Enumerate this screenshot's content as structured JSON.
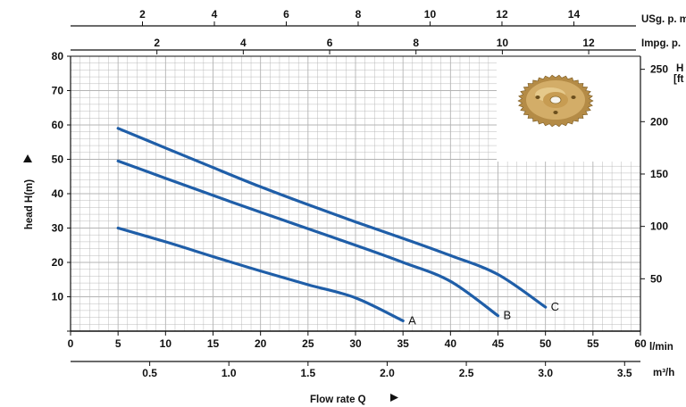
{
  "chart_data": {
    "type": "line",
    "ylabel": "head H(m)",
    "y_right_label_line1": "H",
    "y_right_label_line2": "[ft",
    "xlabel": "Flow rate Q",
    "x_lmin_unit": "l/min",
    "x_m3h_unit": "m³/h",
    "x_usg_unit": "USg. p. m",
    "x_impg_unit": "Impg. p.",
    "xlim": [
      0,
      60
    ],
    "ylim": [
      0,
      80
    ],
    "grid": true,
    "x_ticks_lmin": [
      "0",
      "5",
      "10",
      "15",
      "20",
      "25",
      "30",
      "35",
      "40",
      "45",
      "50",
      "55",
      "60"
    ],
    "x_ticks_m3h": [
      "0.5",
      "1.0",
      "1.5",
      "2.0",
      "2.5",
      "3.0",
      "3.5"
    ],
    "x_ticks_usg": [
      "2",
      "4",
      "6",
      "8",
      "10",
      "12",
      "14"
    ],
    "x_ticks_impg": [
      "2",
      "4",
      "6",
      "8",
      "10",
      "12"
    ],
    "y_ticks_m": [
      "10",
      "20",
      "30",
      "40",
      "50",
      "60",
      "70",
      "80"
    ],
    "y_ticks_ft": [
      "50",
      "100",
      "150",
      "200",
      "250"
    ],
    "series": [
      {
        "name": "A",
        "x": [
          5,
          10,
          15,
          20,
          25,
          30,
          35
        ],
        "y": [
          30,
          26,
          21.7,
          17.5,
          13.5,
          9.7,
          3
        ]
      },
      {
        "name": "B",
        "x": [
          5,
          10,
          15,
          20,
          25,
          30,
          35,
          40,
          45
        ],
        "y": [
          49.5,
          44.5,
          39.5,
          34.6,
          29.8,
          25,
          20,
          14.5,
          4.5
        ]
      },
      {
        "name": "C",
        "x": [
          5,
          10,
          15,
          20,
          25,
          30,
          35,
          40,
          45,
          50
        ],
        "y": [
          59,
          53.3,
          47.6,
          42,
          36.8,
          31.8,
          27,
          22,
          16.5,
          7
        ]
      }
    ],
    "colors": {
      "curve": "#1f5ea8",
      "grid": "#b4b4b4",
      "axis": "#111111"
    }
  },
  "image": {
    "name": "brass impeller photo"
  }
}
